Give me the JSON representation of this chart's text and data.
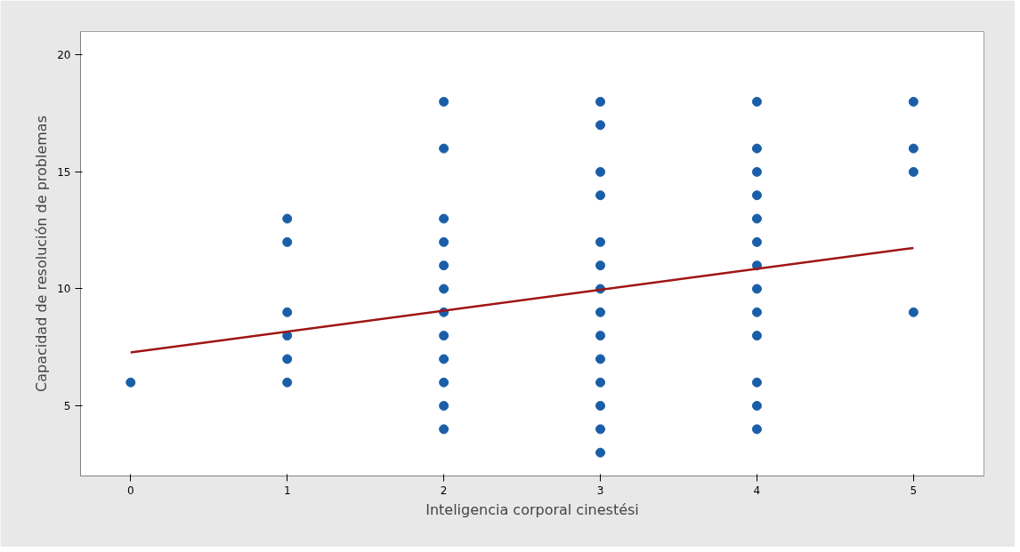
{
  "chart_data": {
    "type": "scatter",
    "xlabel": "Inteligencia corporal cinestési",
    "ylabel": "Capacidad de resolución de problemas",
    "xlim": [
      -0.32,
      5.45
    ],
    "ylim": [
      2,
      21
    ],
    "xticks": [
      0,
      1,
      2,
      3,
      4,
      5
    ],
    "yticks": [
      5,
      10,
      15,
      20
    ],
    "grid": false,
    "series": [
      {
        "color": "#1a5ea8",
        "marker": "circle",
        "x": [
          0,
          1,
          1,
          1,
          1,
          1,
          1,
          2,
          2,
          2,
          2,
          2,
          2,
          2,
          2,
          2,
          2,
          2,
          2,
          3,
          3,
          3,
          3,
          3,
          3,
          3,
          3,
          3,
          3,
          3,
          3,
          3,
          3,
          4,
          4,
          4,
          4,
          4,
          4,
          4,
          4,
          4,
          4,
          4,
          4,
          4,
          5,
          5,
          5,
          5
        ],
        "values": [
          6,
          13,
          12,
          9,
          8,
          7,
          6,
          18,
          16,
          13,
          12,
          11,
          10,
          9,
          8,
          7,
          6,
          5,
          4,
          18,
          17,
          15,
          14,
          12,
          11,
          10,
          9,
          8,
          7,
          6,
          5,
          4,
          3,
          18,
          16,
          15,
          14,
          13,
          12,
          11,
          10,
          9,
          8,
          6,
          5,
          4,
          18,
          16,
          15,
          9
        ]
      },
      {
        "type": "line",
        "color": "#a01414",
        "x": [
          0,
          5
        ],
        "values": [
          7.28,
          11.75
        ],
        "line_style": "solid"
      }
    ]
  }
}
